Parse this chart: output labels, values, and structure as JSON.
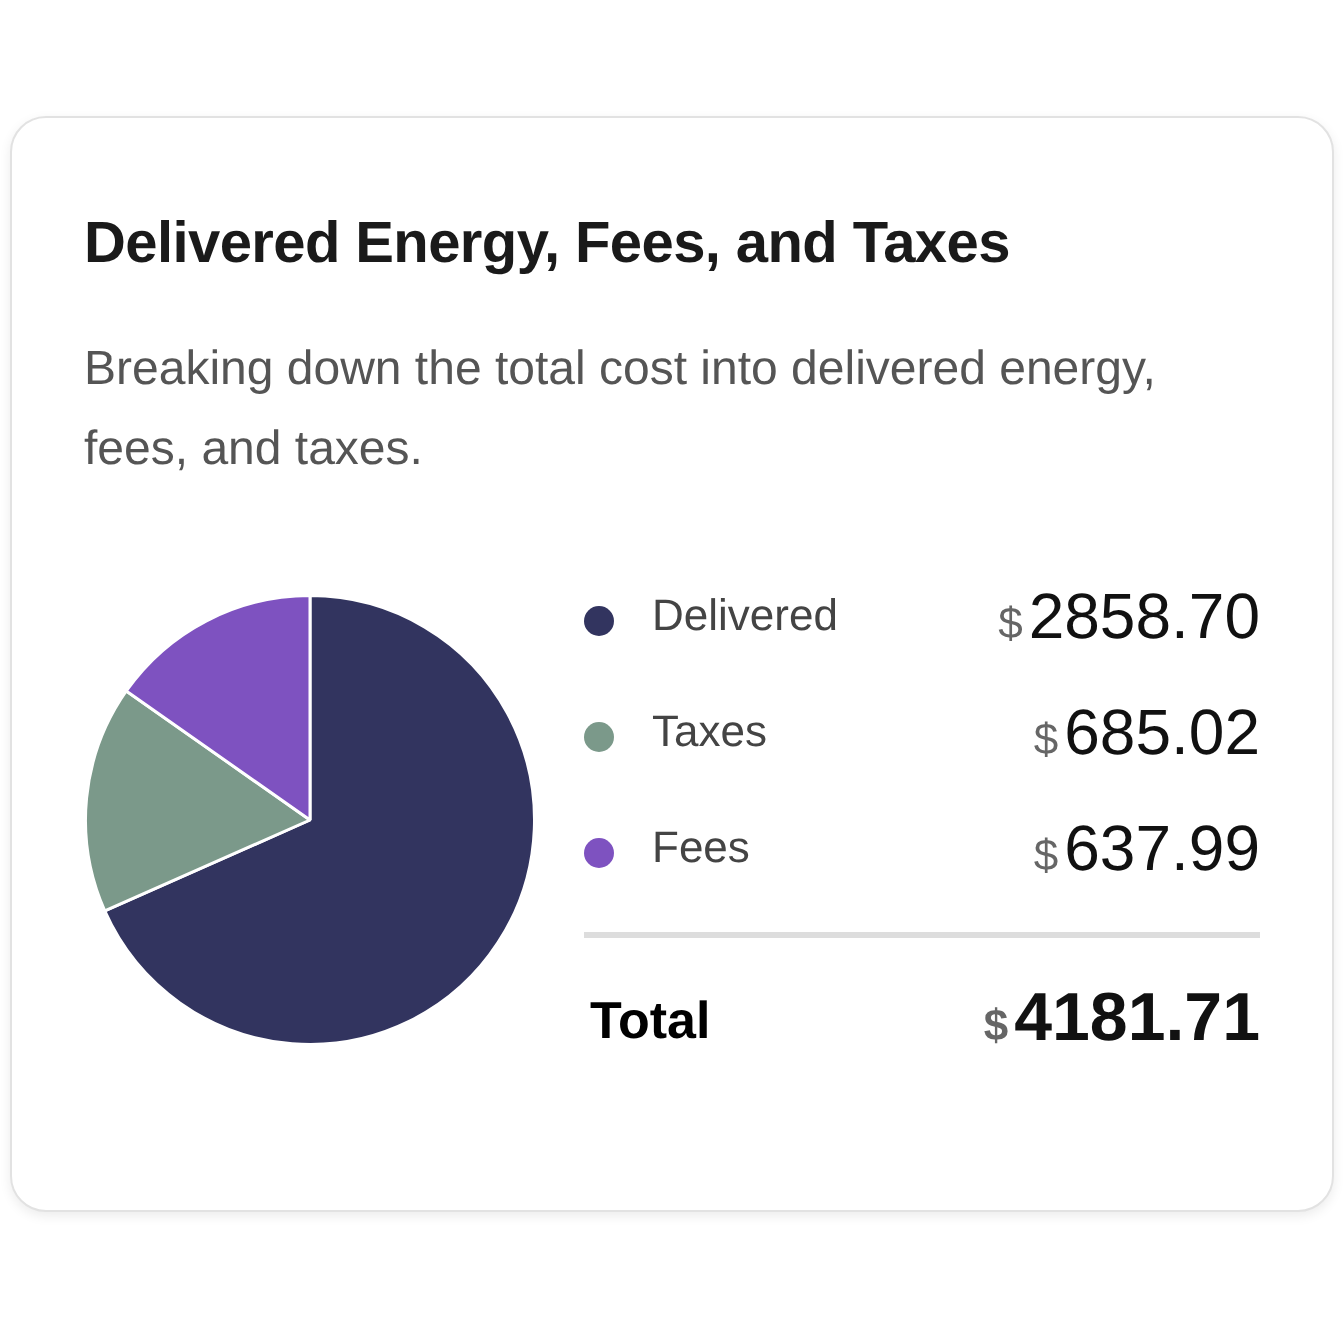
{
  "chart_data": {
    "type": "pie",
    "title": "Delivered Energy, Fees, and Taxes",
    "subtitle": "Breaking down the total cost into delivered energy, fees, and taxes.",
    "categories": [
      "Delivered",
      "Taxes",
      "Fees"
    ],
    "values": [
      2858.7,
      685.02,
      637.99
    ],
    "colors": [
      "#32345f",
      "#7b998a",
      "#7e52c0"
    ],
    "value_labels": [
      "$2858.70",
      "$685.02",
      "$637.99"
    ],
    "annotations": [
      "Total",
      "$4181.71"
    ],
    "legend": "right"
  }
}
